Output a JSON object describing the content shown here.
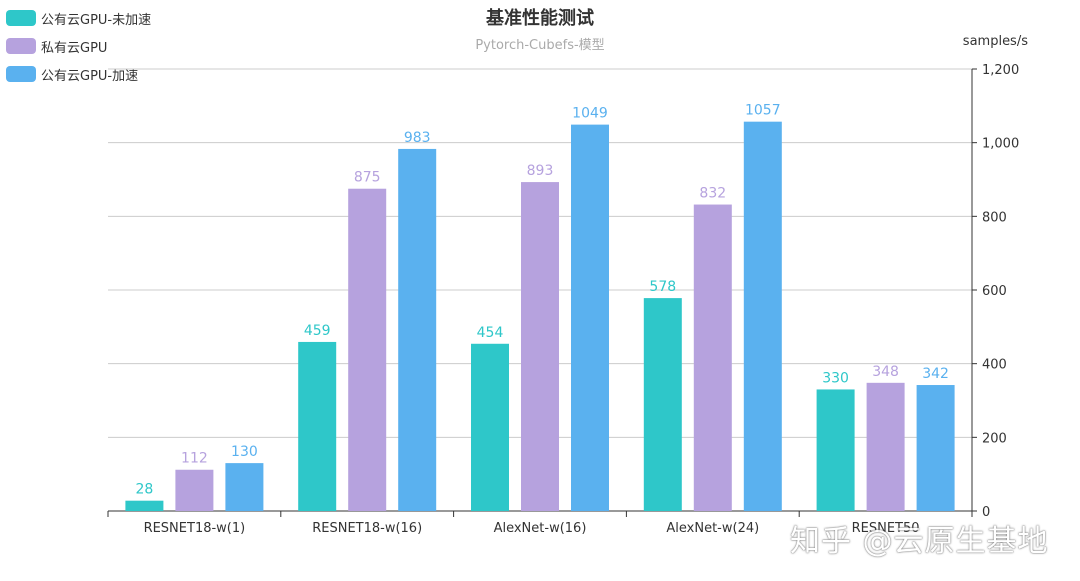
{
  "chart_data": {
    "type": "bar",
    "title": "基准性能测试",
    "subtitle": "Pytorch-Cubefs-模型",
    "ylabel": "samples/s",
    "xlabel": "",
    "ylim": [
      0,
      1200
    ],
    "yticks": [
      0,
      200,
      400,
      600,
      800,
      1000,
      1200
    ],
    "ytick_labels": [
      "0",
      "200",
      "400",
      "600",
      "800",
      "1,000",
      "1,200"
    ],
    "y_axis_side": "right",
    "grid": true,
    "legend_position": "top-left",
    "categories": [
      "RESNET18-w(1)",
      "RESNET18-w(16)",
      "AlexNet-w(16)",
      "AlexNet-w(24)",
      "RESNET50"
    ],
    "series": [
      {
        "name": "公有云GPU-未加速",
        "color": "#2ec7c9",
        "values": [
          28,
          459,
          454,
          578,
          330
        ]
      },
      {
        "name": "私有云GPU",
        "color": "#b6a2de",
        "values": [
          112,
          875,
          893,
          832,
          348
        ]
      },
      {
        "name": "公有云GPU-加速",
        "color": "#5ab1ef",
        "values": [
          130,
          983,
          1049,
          1057,
          342
        ]
      }
    ]
  },
  "watermark": "知乎 @云原生基地"
}
